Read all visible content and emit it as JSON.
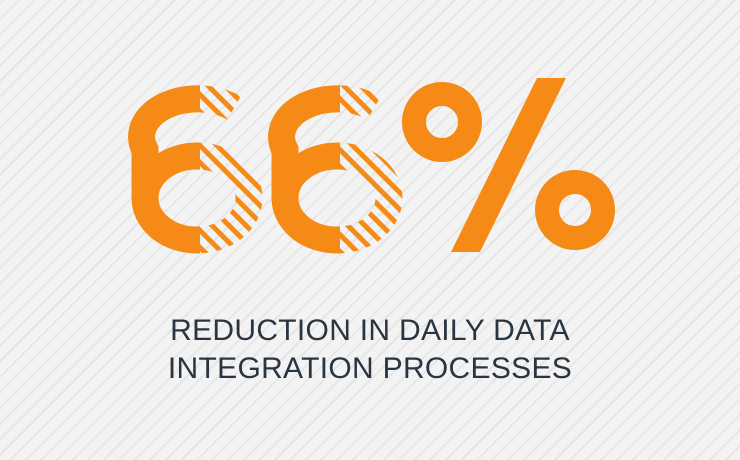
{
  "stat": {
    "value_label": "66%",
    "caption_lines": [
      "REDUCTION IN DAILY DATA",
      "INTEGRATION PROCESSES"
    ]
  },
  "colors": {
    "accent": "#f58b16",
    "caption_text": "#2a3542",
    "background": "#f3f3f3",
    "background_stripe": "#e6e6e6"
  }
}
